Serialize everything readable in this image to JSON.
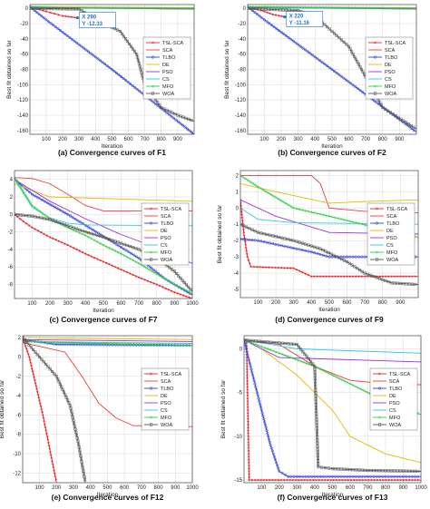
{
  "legend_names": [
    "TSL-SCA",
    "SCA",
    "TLBO",
    "DE",
    "PSO",
    "CS",
    "MFO",
    "WOA"
  ],
  "series_colors": [
    "#e8262b",
    "#f23a3a",
    "#2b3fd6",
    "#e6b800",
    "#9a2ee6",
    "#2ec7e6",
    "#2ecc40",
    "#555555"
  ],
  "chart_data": [
    {
      "type": "line",
      "caption": "(a)  Convergence curves of F1",
      "xlabel": "Iteration",
      "ylabel": "Best fit obtained so far",
      "xlim": [
        1,
        1000
      ],
      "ylim": [
        -165,
        5
      ],
      "xticks": [
        100,
        200,
        300,
        400,
        500,
        600,
        700,
        800,
        900
      ],
      "yticks": [
        0,
        -20,
        -40,
        -60,
        -80,
        -100,
        -120,
        -140,
        -160
      ],
      "grid": true,
      "legend_position": "top-right",
      "datatip": {
        "x_text": "X 290",
        "y_text": "Y -12.33",
        "x": 290,
        "y": -12.33
      },
      "series": [
        {
          "name": "TSL-SCA",
          "x": [
            1,
            100,
            150,
            200,
            290
          ],
          "y": [
            2,
            -4,
            -7,
            -10,
            -12.33
          ]
        },
        {
          "name": "SCA",
          "x": [
            1,
            200,
            500,
            1000
          ],
          "y": [
            2,
            1,
            0,
            -1
          ]
        },
        {
          "name": "TLBO",
          "x": [
            1,
            100,
            500,
            1000
          ],
          "y": [
            2,
            -15,
            -80,
            -165
          ]
        },
        {
          "name": "DE",
          "x": [
            1,
            1000
          ],
          "y": [
            2,
            1
          ]
        },
        {
          "name": "PSO",
          "x": [
            1,
            1000
          ],
          "y": [
            1,
            -1
          ]
        },
        {
          "name": "CS",
          "x": [
            1,
            1000
          ],
          "y": [
            1,
            0
          ]
        },
        {
          "name": "MFO",
          "x": [
            1,
            200,
            1000
          ],
          "y": [
            2,
            1,
            0
          ]
        },
        {
          "name": "WOA",
          "x": [
            1,
            300,
            450,
            550,
            650,
            700,
            800,
            900,
            1000
          ],
          "y": [
            0,
            -1,
            -20,
            -30,
            -60,
            -100,
            -130,
            -140,
            -148
          ]
        }
      ]
    },
    {
      "type": "line",
      "caption": "(b)  Convergence curves of F2",
      "xlabel": "Iteration",
      "ylabel": "Best fit obtained so far",
      "xlim": [
        1,
        1000
      ],
      "ylim": [
        -165,
        5
      ],
      "xticks": [
        100,
        200,
        300,
        400,
        500,
        600,
        700,
        800,
        900
      ],
      "yticks": [
        0,
        -20,
        -40,
        -60,
        -80,
        -100,
        -120,
        -140,
        -160
      ],
      "grid": true,
      "legend_position": "top-right",
      "datatip": {
        "x_text": "X 220",
        "y_text": "Y -11.16",
        "x": 220,
        "y": -11.16
      },
      "series": [
        {
          "name": "TSL-SCA",
          "x": [
            1,
            100,
            150,
            220
          ],
          "y": [
            2,
            -4,
            -8,
            -11.16
          ]
        },
        {
          "name": "SCA",
          "x": [
            1,
            1000
          ],
          "y": [
            2,
            0
          ]
        },
        {
          "name": "TLBO",
          "x": [
            1,
            100,
            500,
            1000
          ],
          "y": [
            2,
            -15,
            -80,
            -162
          ]
        },
        {
          "name": "DE",
          "x": [
            1,
            1000
          ],
          "y": [
            2,
            1
          ]
        },
        {
          "name": "PSO",
          "x": [
            1,
            1000
          ],
          "y": [
            1,
            -1
          ]
        },
        {
          "name": "CS",
          "x": [
            1,
            1000
          ],
          "y": [
            1,
            0
          ]
        },
        {
          "name": "MFO",
          "x": [
            1,
            1000
          ],
          "y": [
            2,
            0
          ]
        },
        {
          "name": "WOA",
          "x": [
            1,
            300,
            400,
            500,
            600,
            700,
            800,
            1000
          ],
          "y": [
            0,
            -3,
            -10,
            -30,
            -50,
            -90,
            -130,
            -158
          ]
        }
      ]
    },
    {
      "type": "line",
      "caption": "(c)  Convergence curves of F7",
      "xlabel": "Iteration",
      "ylabel": "Best fit obtained so far",
      "xlim": [
        1,
        1000
      ],
      "ylim": [
        -9.6,
        5
      ],
      "xticks": [
        100,
        200,
        300,
        400,
        500,
        600,
        700,
        800,
        900,
        1000
      ],
      "yticks": [
        4,
        2,
        0,
        -2,
        -4,
        -6,
        -8
      ],
      "grid": true,
      "legend_position": "top-right",
      "series": [
        {
          "name": "TSL-SCA",
          "x": [
            1,
            50,
            100,
            200,
            300,
            400,
            500,
            600,
            700,
            800,
            900,
            1000
          ],
          "y": [
            0,
            -0.8,
            -1.5,
            -2.6,
            -3.5,
            -4.5,
            -5.4,
            -6.3,
            -7.2,
            -8.0,
            -8.9,
            -9.6
          ]
        },
        {
          "name": "SCA",
          "x": [
            1,
            100,
            200,
            300,
            400,
            500,
            1000
          ],
          "y": [
            4.2,
            4.1,
            3.5,
            2.3,
            1.0,
            0.4,
            0.4
          ]
        },
        {
          "name": "TLBO",
          "x": [
            1,
            100,
            300,
            500,
            700,
            850,
            1000
          ],
          "y": [
            4,
            2.3,
            0,
            -2.5,
            -5,
            -7.4,
            -9.2
          ]
        },
        {
          "name": "DE",
          "x": [
            1,
            200,
            1000
          ],
          "y": [
            3.5,
            2.0,
            1.5
          ]
        },
        {
          "name": "PSO",
          "x": [
            1,
            200,
            400,
            600,
            800,
            1000
          ],
          "y": [
            4,
            1.5,
            -0.5,
            -2.3,
            -3.8,
            -5.6
          ]
        },
        {
          "name": "CS",
          "x": [
            1,
            100,
            200,
            300,
            400,
            1000
          ],
          "y": [
            4,
            0.8,
            -0.4,
            -1,
            -1.2,
            -1.3
          ]
        },
        {
          "name": "MFO",
          "x": [
            1,
            100,
            200,
            300,
            400,
            500,
            600,
            700,
            800,
            900,
            1000
          ],
          "y": [
            4.2,
            1.0,
            -0.5,
            -1.5,
            -2.4,
            -3.5,
            -4.5,
            -5.6,
            -6.8,
            -8.0,
            -9.0
          ]
        },
        {
          "name": "WOA",
          "x": [
            1,
            100,
            200,
            300,
            400,
            500,
            600,
            700,
            800,
            900,
            1000
          ],
          "y": [
            0,
            -0.2,
            -0.6,
            -1.3,
            -2,
            -2.6,
            -3.3,
            -4,
            -5,
            -6.5,
            -8.8
          ]
        }
      ]
    },
    {
      "type": "line",
      "caption": "(d)  Convergence curves of F9",
      "xlabel": "Iteration",
      "ylabel": "Best fit obtained so far",
      "xlim": [
        1,
        1000
      ],
      "ylim": [
        -5.5,
        2.3
      ],
      "xticks": [
        100,
        200,
        300,
        400,
        500,
        600,
        700,
        800,
        900
      ],
      "yticks": [
        2,
        1,
        0,
        -1,
        -2,
        -3,
        -4,
        -5
      ],
      "grid": true,
      "legend_position": "top-right",
      "series": [
        {
          "name": "TSL-SCA",
          "x": [
            1,
            20,
            40,
            60,
            300,
            400,
            1000
          ],
          "y": [
            0.5,
            -1.5,
            -3,
            -3.6,
            -3.7,
            -4.2,
            -4.2
          ]
        },
        {
          "name": "SCA",
          "x": [
            1,
            150,
            400,
            450,
            500,
            700,
            1000
          ],
          "y": [
            2,
            2,
            2,
            1.5,
            0,
            -0.2,
            -0.3
          ]
        },
        {
          "name": "TLBO",
          "x": [
            1,
            100,
            400,
            500,
            1000
          ],
          "y": [
            -1.9,
            -2,
            -2.7,
            -3,
            -3
          ]
        },
        {
          "name": "DE",
          "x": [
            1,
            200,
            500,
            700,
            1000
          ],
          "y": [
            1.5,
            1,
            0.3,
            0.4,
            0.5
          ]
        },
        {
          "name": "PSO",
          "x": [
            1,
            200,
            500,
            1000
          ],
          "y": [
            0.5,
            -0.5,
            -1.5,
            -1.6
          ]
        },
        {
          "name": "CS",
          "x": [
            1,
            100,
            300,
            1000
          ],
          "y": [
            0,
            -0.7,
            -0.9,
            -1
          ]
        },
        {
          "name": "MFO",
          "x": [
            1,
            100,
            300,
            500,
            800,
            1000
          ],
          "y": [
            2,
            1.3,
            0,
            -0.5,
            -1.3,
            -1.8
          ]
        },
        {
          "name": "WOA",
          "x": [
            1,
            100,
            300,
            450,
            600,
            700,
            850,
            1000
          ],
          "y": [
            -1,
            -1.5,
            -2,
            -2.5,
            -3.3,
            -4,
            -4.6,
            -4.7
          ]
        }
      ]
    },
    {
      "type": "line",
      "caption": "(e)  Convergence curves of F12",
      "xlabel": "Iteration",
      "ylabel": "Best fit obtained so far",
      "xlim": [
        1,
        1000
      ],
      "ylim": [
        -13,
        2.2
      ],
      "xticks": [
        100,
        200,
        300,
        400,
        500,
        600,
        700,
        800,
        900,
        1000
      ],
      "yticks": [
        2,
        0,
        -2,
        -4,
        -6,
        -8,
        -10,
        -12
      ],
      "grid": true,
      "legend_position": "top-right",
      "series": [
        {
          "name": "TSL-SCA",
          "x": [
            1,
            40,
            80,
            120,
            160,
            200
          ],
          "y": [
            2,
            0,
            -3,
            -6,
            -9.5,
            -13
          ]
        },
        {
          "name": "SCA",
          "x": [
            1,
            250,
            350,
            450,
            550,
            650,
            1000
          ],
          "y": [
            1.5,
            0.5,
            -2,
            -4.8,
            -6.3,
            -7.1,
            -7.2
          ]
        },
        {
          "name": "TLBO",
          "x": [
            1,
            200,
            1000
          ],
          "y": [
            1.8,
            1.3,
            1.2
          ]
        },
        {
          "name": "DE",
          "x": [
            1,
            1000
          ],
          "y": [
            2,
            1.8
          ]
        },
        {
          "name": "PSO",
          "x": [
            1,
            1000
          ],
          "y": [
            1.8,
            1.6
          ]
        },
        {
          "name": "CS",
          "x": [
            1,
            1000
          ],
          "y": [
            1.6,
            1.4
          ]
        },
        {
          "name": "MFO",
          "x": [
            1,
            1000
          ],
          "y": [
            1.6,
            1.2
          ]
        },
        {
          "name": "WOA",
          "x": [
            1,
            100,
            200,
            280,
            330,
            370
          ],
          "y": [
            2,
            0,
            -2,
            -5,
            -9,
            -13
          ]
        }
      ]
    },
    {
      "type": "line",
      "caption": "(f)  Convergence curves of F13",
      "xlabel": "Iteration",
      "ylabel": "Best fit obtained so far",
      "xlim": [
        1,
        1000
      ],
      "ylim": [
        -15.3,
        1.5
      ],
      "xticks": [
        100,
        200,
        300,
        400,
        500,
        600,
        700,
        800,
        900,
        1000
      ],
      "yticks": [
        0,
        -5,
        -10,
        -15
      ],
      "grid": true,
      "legend_position": "top-right",
      "series": [
        {
          "name": "TSL-SCA",
          "x": [
            1,
            15,
            30,
            1000
          ],
          "y": [
            1,
            1,
            -15,
            -15
          ]
        },
        {
          "name": "SCA",
          "x": [
            1,
            200,
            400,
            600,
            800,
            1000
          ],
          "y": [
            1,
            0.5,
            -2,
            -3.6,
            -4.0,
            -4.1
          ]
        },
        {
          "name": "TLBO",
          "x": [
            1,
            50,
            100,
            150,
            200,
            250,
            1000
          ],
          "y": [
            1,
            -3,
            -7,
            -11,
            -14,
            -14.6,
            -14.6
          ]
        },
        {
          "name": "DE",
          "x": [
            1,
            100,
            200,
            300,
            400,
            500,
            600,
            800,
            1000
          ],
          "y": [
            1,
            0,
            -1.5,
            -3,
            -5,
            -7,
            -10,
            -12,
            -13
          ]
        },
        {
          "name": "PSO",
          "x": [
            1,
            200,
            1000
          ],
          "y": [
            1,
            -1,
            -1.5
          ]
        },
        {
          "name": "CS",
          "x": [
            1,
            300,
            1000
          ],
          "y": [
            1,
            0,
            -0.5
          ]
        },
        {
          "name": "MFO",
          "x": [
            1,
            200,
            400,
            600,
            800,
            1000
          ],
          "y": [
            1,
            -0.5,
            -2,
            -4,
            -6,
            -7.5
          ]
        },
        {
          "name": "WOA",
          "x": [
            1,
            300,
            400,
            420,
            500,
            600,
            700,
            1000
          ],
          "y": [
            1,
            0.5,
            -2,
            -13.5,
            -13.7,
            -13.8,
            -13.9,
            -14
          ]
        }
      ]
    }
  ]
}
